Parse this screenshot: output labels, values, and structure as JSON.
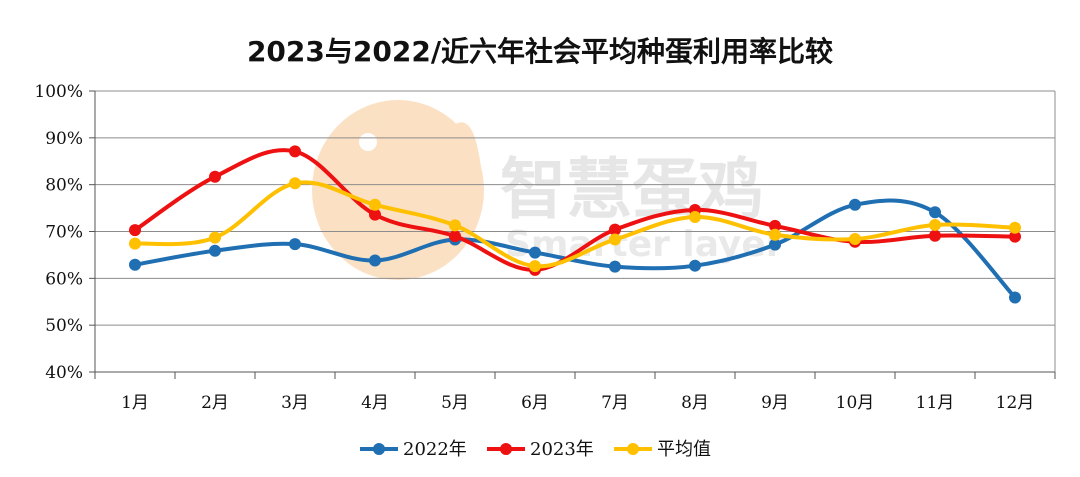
{
  "chart_data": {
    "type": "line",
    "title": "2023与2022/近六年社会平均种蛋利用率比较",
    "categories": [
      "1月",
      "2月",
      "3月",
      "4月",
      "5月",
      "6月",
      "7月",
      "8月",
      "9月",
      "10月",
      "11月",
      "12月"
    ],
    "ylim": [
      40,
      100
    ],
    "yticks": [
      "40%",
      "50%",
      "60%",
      "70%",
      "80%",
      "90%",
      "100%"
    ],
    "grid": true,
    "legend_position": "bottom",
    "series": [
      {
        "name": "2022年",
        "color": "#1f6fb2",
        "values": [
          62.9,
          65.9,
          67.3,
          63.8,
          68.3,
          65.5,
          62.5,
          62.7,
          67.2,
          75.7,
          74.1,
          55.9
        ]
      },
      {
        "name": "2023年",
        "color": "#ee1111",
        "values": [
          70.3,
          81.7,
          87.1,
          73.6,
          69.0,
          61.8,
          70.4,
          74.6,
          71.2,
          67.8,
          69.1,
          68.9
        ]
      },
      {
        "name": "平均值",
        "color": "#ffc000",
        "values": [
          67.4,
          68.7,
          80.3,
          75.7,
          71.3,
          62.6,
          68.3,
          73.1,
          69.3,
          68.4,
          71.4,
          70.8
        ]
      }
    ]
  },
  "watermark": {
    "brand": "智慧蛋鸡",
    "sub": "Smarter layer"
  }
}
